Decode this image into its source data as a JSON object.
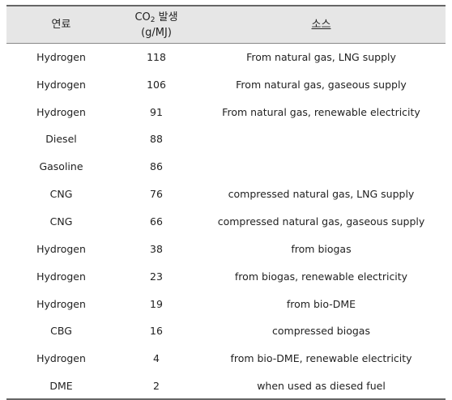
{
  "table": {
    "headers": {
      "fuel": "연료",
      "co2_main": "CO",
      "co2_sub": "2",
      "co2_rest": " 발생",
      "co2_unit": "(g/MJ)",
      "source": "소스"
    },
    "rows": [
      {
        "fuel": "Hydrogen",
        "co2": "118",
        "source": "From natural gas, LNG supply"
      },
      {
        "fuel": "Hydrogen",
        "co2": "106",
        "source": "From natural gas, gaseous supply"
      },
      {
        "fuel": "Hydrogen",
        "co2": "91",
        "source": "From natural gas, renewable electricity"
      },
      {
        "fuel": "Diesel",
        "co2": "88",
        "source": ""
      },
      {
        "fuel": "Gasoline",
        "co2": "86",
        "source": ""
      },
      {
        "fuel": "CNG",
        "co2": "76",
        "source": "compressed natural gas, LNG supply"
      },
      {
        "fuel": "CNG",
        "co2": "66",
        "source": "compressed natural gas, gaseous supply"
      },
      {
        "fuel": "Hydrogen",
        "co2": "38",
        "source": "from biogas"
      },
      {
        "fuel": "Hydrogen",
        "co2": "23",
        "source": "from biogas, renewable electricity"
      },
      {
        "fuel": "Hydrogen",
        "co2": "19",
        "source": "from bio-DME"
      },
      {
        "fuel": "CBG",
        "co2": "16",
        "source": "compressed biogas"
      },
      {
        "fuel": "Hydrogen",
        "co2": "4",
        "source": "from bio-DME, renewable electricity"
      },
      {
        "fuel": "DME",
        "co2": "2",
        "source": "when used as diesed fuel"
      }
    ]
  }
}
